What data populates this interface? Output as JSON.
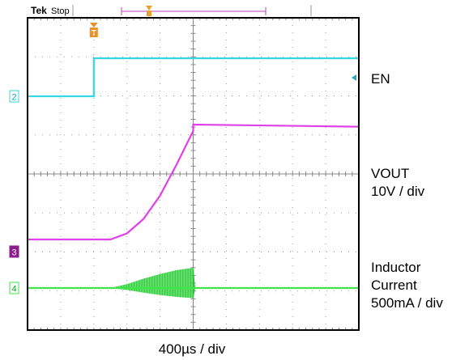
{
  "chart_data": {
    "type": "line",
    "instrument": {
      "brand": "Tek",
      "status": "Stop"
    },
    "x_units": "ms",
    "x_range": [
      -0.8,
      3.2
    ],
    "time_base": "400µs / div",
    "grid": {
      "x_divisions": 10,
      "y_divisions": 8,
      "show": true
    },
    "trigger_time_ms": 0,
    "series": [
      {
        "name": "EN",
        "channel": 2,
        "color": "#35d6e6",
        "scale": "",
        "points": [
          [
            -0.8,
            0
          ],
          [
            0.0,
            0
          ],
          [
            0.0,
            1
          ],
          [
            3.2,
            1
          ]
        ]
      },
      {
        "name": "VOUT",
        "channel": 3,
        "color": "#e040e8",
        "scale": "10V / div",
        "points": [
          [
            -0.8,
            0
          ],
          [
            0.2,
            0
          ],
          [
            0.4,
            2.9
          ],
          [
            0.6,
            9.8
          ],
          [
            0.8,
            21
          ],
          [
            1.0,
            36
          ],
          [
            1.2,
            52
          ],
          [
            1.2,
            55
          ],
          [
            3.2,
            54
          ]
        ]
      },
      {
        "name": "Inductor Current",
        "channel": 4,
        "color": "#3ee64a",
        "scale": "500mA / div",
        "envelope_points": [
          [
            -0.8,
            0
          ],
          [
            0.2,
            0
          ],
          [
            0.4,
            0.1
          ],
          [
            0.6,
            0.24
          ],
          [
            0.8,
            0.36
          ],
          [
            1.0,
            0.46
          ],
          [
            1.2,
            0.52
          ],
          [
            1.22,
            0
          ],
          [
            3.2,
            0
          ]
        ]
      }
    ]
  },
  "labels": {
    "en": "EN",
    "vout": [
      "VOUT",
      "10V / div"
    ],
    "inductor": [
      "Inductor",
      "Current",
      "500mA / div"
    ],
    "time_base": "400µs / div",
    "channel_markers": [
      "2",
      "3",
      "4"
    ]
  }
}
